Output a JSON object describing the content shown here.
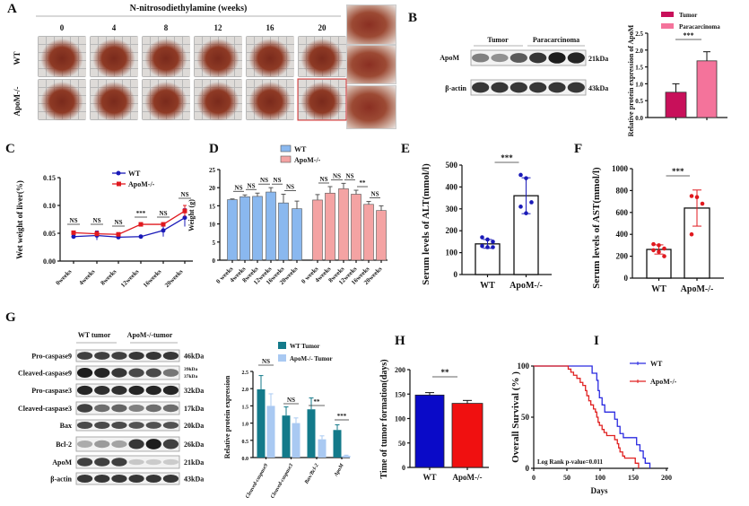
{
  "panel_labels": {
    "a": "A",
    "b": "B",
    "c": "C",
    "d": "D",
    "e": "E",
    "f": "F",
    "g": "G",
    "h": "H",
    "i": "I"
  },
  "panel_a": {
    "title": "N-nitrosodiethylamine (weeks)",
    "weeks": [
      "0",
      "4",
      "8",
      "12",
      "16",
      "20"
    ],
    "rows": [
      "WT",
      "ApoM-/-"
    ]
  },
  "panel_b_blot": {
    "groups": [
      "Tumor",
      "Paracarcinoma"
    ],
    "rows": [
      {
        "label": "ApoM",
        "kda": "21kDa"
      },
      {
        "label": "β-actin",
        "kda": "43kDa"
      }
    ]
  },
  "panel_g_blot": {
    "groups": [
      "WT tumor",
      "ApoM-/-tumor"
    ],
    "rows": [
      {
        "label": "Pro-caspase9",
        "kda": "46kDa"
      },
      {
        "label": "Cleaved-caspase9",
        "kda": "39kDa",
        "kda2": "37kDa"
      },
      {
        "label": "Pro-caspase3",
        "kda": "32kDa"
      },
      {
        "label": "Cleaved-caspase3",
        "kda": "17kDa"
      },
      {
        "label": "Bax",
        "kda": "20kDa"
      },
      {
        "label": "Bcl-2",
        "kda": "26kDa"
      },
      {
        "label": "ApoM",
        "kda": "21kDa"
      },
      {
        "label": "β-actin",
        "kda": "43kDa"
      }
    ]
  },
  "chart_data": [
    {
      "id": "B",
      "type": "bar",
      "categories": [
        "Tumor",
        "Paracarcinoma"
      ],
      "values": [
        0.75,
        1.68
      ],
      "errors": [
        0.25,
        0.27
      ],
      "colors": [
        "#c8105a",
        "#f4739b"
      ],
      "legend": [
        "Tumor",
        "Paracarcinoma"
      ],
      "legend_position": "top-right",
      "ylabel": "Relative protein expression of ApoM",
      "ylim": [
        0,
        2.5
      ],
      "yticks": [
        "0.0",
        "0.5",
        "1.0",
        "1.5",
        "2.0",
        "2.5"
      ],
      "significance": [
        "***"
      ]
    },
    {
      "id": "C",
      "type": "line",
      "categories": [
        "0weeks",
        "4weeks",
        "8weeks",
        "12weeks",
        "16weeks",
        "20weeks"
      ],
      "series": [
        {
          "name": "WT",
          "values": [
            0.044,
            0.046,
            0.043,
            0.044,
            0.055,
            0.078
          ],
          "errors": [
            0.002,
            0.008,
            0.002,
            0.002,
            0.011,
            0.016
          ],
          "color": "#1a1ab8"
        },
        {
          "name": "ApoM-/-",
          "values": [
            0.051,
            0.049,
            0.048,
            0.066,
            0.066,
            0.09
          ],
          "errors": [
            0.003,
            0.004,
            0.003,
            0.003,
            0.003,
            0.01
          ],
          "color": "#e0191f"
        }
      ],
      "ylabel": "Wet weight of liver(%)",
      "ylim": [
        0,
        0.15
      ],
      "yticks": [
        "0.00",
        "0.05",
        "0.10",
        "0.15"
      ],
      "significance": [
        "NS",
        "NS",
        "NS",
        "***",
        "NS",
        "NS"
      ],
      "legend_position": "top-center"
    },
    {
      "id": "D",
      "type": "bar",
      "categories": [
        "0 weeks",
        "4weeks",
        "8weeks",
        "12weeks",
        "16weeks",
        "20weeks"
      ],
      "series": [
        {
          "name": "WT",
          "values": [
            16.7,
            17.5,
            17.6,
            18.8,
            15.8,
            14.2
          ],
          "errors": [
            0.2,
            0.5,
            0.9,
            1.2,
            2.4,
            2.1
          ],
          "color": "#8ab8ef"
        },
        {
          "name": "ApoM-/-",
          "values": [
            16.6,
            18.5,
            19.7,
            18.2,
            15.4,
            13.7
          ],
          "errors": [
            1.5,
            1.8,
            1.5,
            1.1,
            0.8,
            1.3
          ],
          "color": "#f4a3a3"
        }
      ],
      "ylabel": "Weight (g)",
      "ylim": [
        0,
        25
      ],
      "yticks": [
        "0",
        "5",
        "10",
        "15",
        "20",
        "25"
      ],
      "significance_wt": [
        "NS",
        "NS",
        "NS",
        "NS",
        "NS"
      ],
      "significance_apom": [
        "NS",
        "NS",
        "NS",
        "**",
        "NS"
      ],
      "legend_position": "top-center"
    },
    {
      "id": "E",
      "type": "bar",
      "categories": [
        "WT",
        "ApoM-/-"
      ],
      "values": [
        140,
        360
      ],
      "errors": [
        20,
        82
      ],
      "points": [
        [
          170,
          160,
          150,
          130,
          125,
          125
        ],
        [
          455,
          440,
          330,
          310,
          280
        ]
      ],
      "color": "#1a1ab8",
      "ylabel": "Serum levels of ALT(mmol/l)",
      "ylim": [
        0,
        500
      ],
      "yticks": [
        "0",
        "100",
        "200",
        "300",
        "400",
        "500"
      ],
      "significance": [
        "***"
      ]
    },
    {
      "id": "F",
      "type": "bar",
      "categories": [
        "WT",
        "ApoM-/-"
      ],
      "values": [
        262,
        640
      ],
      "errors": [
        42,
        165
      ],
      "points": [
        [
          310,
          300,
          270,
          255,
          240,
          200
        ],
        [
          750,
          740,
          680,
          400
        ]
      ],
      "color": "#e0191f",
      "ylabel": "Serum levels of AST(mmol/l)",
      "ylim": [
        0,
        1000
      ],
      "yticks": [
        "0",
        "200",
        "400",
        "600",
        "800",
        "1000"
      ],
      "significance": [
        "***"
      ]
    },
    {
      "id": "G",
      "type": "bar",
      "categories": [
        "Cleaved-caspase9",
        "Cleaved-caspase3",
        "Bax/Bcl-2",
        "ApoM"
      ],
      "series": [
        {
          "name": "WT Tumor",
          "values": [
            1.98,
            1.22,
            1.4,
            0.8
          ],
          "errors": [
            0.4,
            0.25,
            0.33,
            0.15
          ],
          "color": "#137a8a"
        },
        {
          "name": "ApoM-/- Tumor",
          "values": [
            1.5,
            1.0,
            0.53,
            0.05
          ],
          "errors": [
            0.35,
            0.15,
            0.1,
            0.02
          ],
          "color": "#a9c9f2"
        }
      ],
      "ylabel": "Relative protein expression",
      "ylim": [
        0,
        2.5
      ],
      "yticks": [
        "0.0",
        "0.5",
        "1.0",
        "1.5",
        "2.0",
        "2.5"
      ],
      "significance": [
        "NS",
        "NS",
        "**",
        "***"
      ],
      "legend_position": "top"
    },
    {
      "id": "H",
      "type": "bar",
      "categories": [
        "WT",
        "ApoM-/-"
      ],
      "values": [
        148,
        131
      ],
      "errors": [
        5,
        6
      ],
      "colors": [
        "#0a0ac8",
        "#f01010"
      ],
      "ylabel": "Time of tumor formation(days)",
      "ylim": [
        0,
        200
      ],
      "yticks": [
        "0",
        "50",
        "100",
        "150",
        "200"
      ],
      "significance": [
        "**"
      ]
    },
    {
      "id": "I",
      "type": "line",
      "series": [
        {
          "name": "WT",
          "color": "#2a2ae0",
          "steps": [
            [
              0,
              100
            ],
            [
              86,
              100
            ],
            [
              88,
              93
            ],
            [
              95,
              86
            ],
            [
              97,
              76
            ],
            [
              99,
              69
            ],
            [
              103,
              62
            ],
            [
              107,
              55
            ],
            [
              118,
              55
            ],
            [
              122,
              48
            ],
            [
              126,
              41
            ],
            [
              130,
              34
            ],
            [
              135,
              30
            ],
            [
              150,
              30
            ],
            [
              155,
              23
            ],
            [
              160,
              17
            ],
            [
              165,
              10
            ],
            [
              168,
              5
            ],
            [
              175,
              0
            ]
          ]
        },
        {
          "name": "ApoM-/-",
          "color": "#e02020",
          "steps": [
            [
              0,
              100
            ],
            [
              50,
              100
            ],
            [
              52,
              97
            ],
            [
              56,
              94
            ],
            [
              60,
              91
            ],
            [
              65,
              88
            ],
            [
              70,
              84
            ],
            [
              74,
              81
            ],
            [
              78,
              76
            ],
            [
              80,
              71
            ],
            [
              83,
              66
            ],
            [
              86,
              62
            ],
            [
              90,
              58
            ],
            [
              93,
              55
            ],
            [
              95,
              50
            ],
            [
              97,
              45
            ],
            [
              99,
              42
            ],
            [
              103,
              38
            ],
            [
              106,
              35
            ],
            [
              110,
              32
            ],
            [
              118,
              32
            ],
            [
              122,
              28
            ],
            [
              126,
              24
            ],
            [
              128,
              20
            ],
            [
              130,
              16
            ],
            [
              134,
              12
            ],
            [
              137,
              10
            ],
            [
              150,
              10
            ],
            [
              153,
              5
            ],
            [
              158,
              0
            ]
          ]
        }
      ],
      "xlabel": "Days",
      "ylabel": "Overall Survival (% )",
      "xlim": [
        0,
        200
      ],
      "ylim": [
        0,
        100
      ],
      "xticks": [
        "0",
        "50",
        "100",
        "150",
        "200"
      ],
      "yticks": [
        "0",
        "50",
        "100"
      ],
      "annotation": "Log Rank p-value=0.011",
      "legend_position": "top-right"
    }
  ]
}
